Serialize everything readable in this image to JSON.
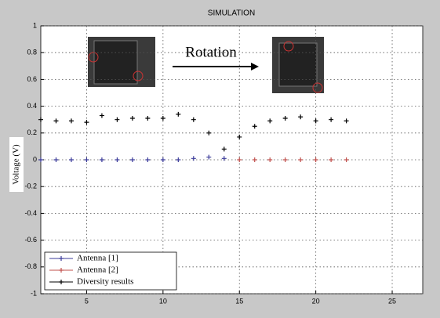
{
  "chart_data": {
    "type": "scatter",
    "title": "SIMULATION",
    "y_label": "Voltage (V)",
    "annotation": "Rotation",
    "xlim": [
      2,
      27
    ],
    "xticks": [
      5,
      10,
      15,
      20,
      25
    ],
    "ylim": [
      -1,
      1
    ],
    "yticks": [
      -1,
      -0.8,
      -0.6,
      -0.4,
      -0.2,
      0,
      0.2,
      0.4,
      0.6,
      0.8,
      1
    ],
    "grid": true,
    "legend": "lower left",
    "series": [
      {
        "name": "Antenna [1]",
        "color": "#3b3b9a",
        "x": [
          2,
          3,
          4,
          5,
          6,
          7,
          8,
          9,
          10,
          11,
          12,
          13,
          14
        ],
        "values": [
          0,
          0,
          0,
          0,
          0,
          0,
          0,
          0,
          0,
          0,
          0.01,
          0.02,
          0.01
        ]
      },
      {
        "name": "Antenna [2]",
        "color": "#c0504d",
        "x": [
          15,
          16,
          17,
          18,
          19,
          20,
          21,
          22
        ],
        "values": [
          0,
          0,
          0,
          0,
          0,
          0,
          0,
          0
        ]
      },
      {
        "name": "Diversity results",
        "color": "#000000",
        "x": [
          2,
          3,
          4,
          5,
          6,
          7,
          8,
          9,
          10,
          11,
          12,
          13,
          14,
          15,
          16,
          17,
          18,
          19,
          20,
          21,
          22
        ],
        "values": [
          0.3,
          0.29,
          0.29,
          0.28,
          0.33,
          0.3,
          0.31,
          0.31,
          0.31,
          0.34,
          0.3,
          0.2,
          0.08,
          0.17,
          0.25,
          0.29,
          0.31,
          0.32,
          0.29,
          0.3,
          0.29
        ]
      }
    ]
  }
}
